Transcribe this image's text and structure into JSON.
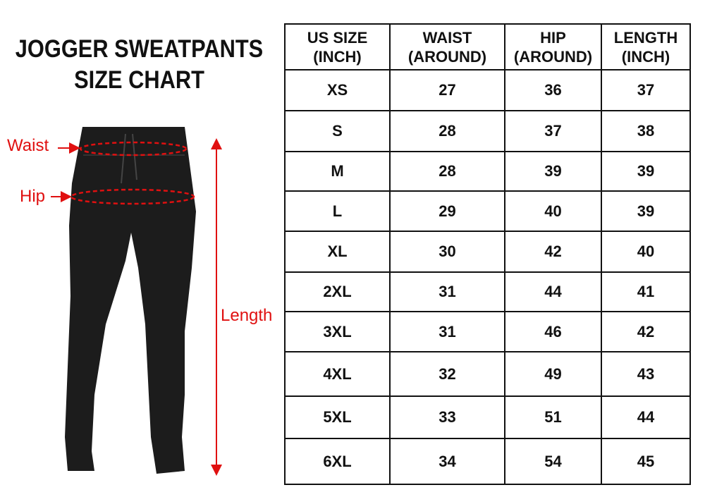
{
  "title": {
    "line1": "JOGGER SWEATPANTS",
    "line2": "SIZE CHART"
  },
  "labels": {
    "waist": "Waist",
    "hip": "Hip",
    "length": "Length"
  },
  "colors": {
    "annotation": "#e01010",
    "garment": "#1a1a1a"
  },
  "table": {
    "headers": [
      [
        "US SIZE",
        "(INCH)"
      ],
      [
        "WAIST",
        "(AROUND)"
      ],
      [
        "HIP",
        "(AROUND)"
      ],
      [
        "LENGTH",
        "(INCH)"
      ]
    ],
    "rows": [
      [
        "XS",
        "27",
        "36",
        "37"
      ],
      [
        "S",
        "28",
        "37",
        "38"
      ],
      [
        "M",
        "28",
        "39",
        "39"
      ],
      [
        "L",
        "29",
        "40",
        "39"
      ],
      [
        "XL",
        "30",
        "42",
        "40"
      ],
      [
        "2XL",
        "31",
        "44",
        "41"
      ],
      [
        "3XL",
        "31",
        "46",
        "42"
      ],
      [
        "4XL",
        "32",
        "49",
        "43"
      ],
      [
        "5XL",
        "33",
        "51",
        "44"
      ],
      [
        "6XL",
        "34",
        "54",
        "45"
      ]
    ]
  }
}
